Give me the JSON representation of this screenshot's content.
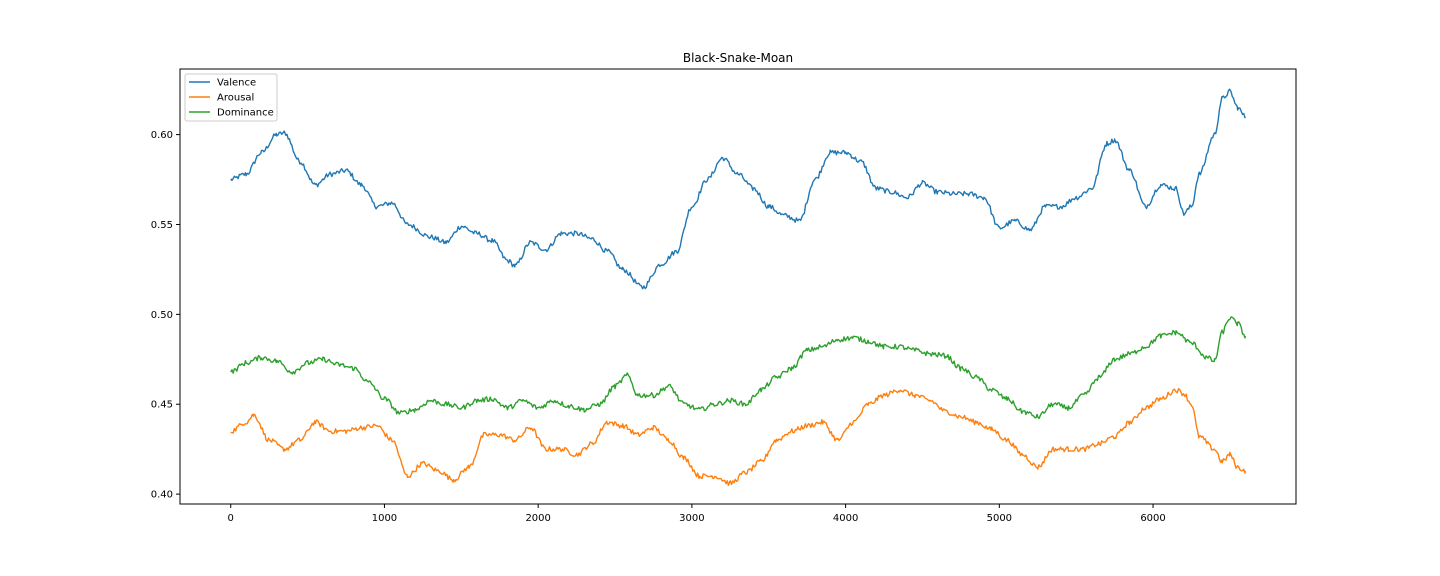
{
  "chart_data": {
    "type": "line",
    "title": "Black-Snake-Moan",
    "xlabel": "",
    "ylabel": "",
    "xlim": [
      -330,
      6930
    ],
    "ylim": [
      0.3945,
      0.6365
    ],
    "xticks": [
      0,
      1000,
      2000,
      3000,
      4000,
      5000,
      6000
    ],
    "yticks": [
      0.4,
      0.45,
      0.5,
      0.55,
      0.6
    ],
    "xtick_labels": [
      "0",
      "1000",
      "2000",
      "3000",
      "4000",
      "5000",
      "6000"
    ],
    "ytick_labels": [
      "0.40",
      "0.45",
      "0.50",
      "0.55",
      "0.60"
    ],
    "grid": false,
    "legend_position": "top-left",
    "series": [
      {
        "name": "Valence",
        "color": "#1f77b4",
        "points": [
          [
            0,
            0.575
          ],
          [
            100,
            0.578
          ],
          [
            200,
            0.59
          ],
          [
            300,
            0.6
          ],
          [
            350,
            0.601
          ],
          [
            450,
            0.585
          ],
          [
            550,
            0.572
          ],
          [
            650,
            0.578
          ],
          [
            750,
            0.58
          ],
          [
            850,
            0.572
          ],
          [
            950,
            0.56
          ],
          [
            1050,
            0.562
          ],
          [
            1150,
            0.55
          ],
          [
            1300,
            0.543
          ],
          [
            1400,
            0.54
          ],
          [
            1500,
            0.549
          ],
          [
            1600,
            0.545
          ],
          [
            1700,
            0.541
          ],
          [
            1800,
            0.53
          ],
          [
            1850,
            0.527
          ],
          [
            1950,
            0.54
          ],
          [
            2050,
            0.536
          ],
          [
            2150,
            0.545
          ],
          [
            2250,
            0.545
          ],
          [
            2350,
            0.542
          ],
          [
            2450,
            0.535
          ],
          [
            2550,
            0.525
          ],
          [
            2680,
            0.515
          ],
          [
            2800,
            0.528
          ],
          [
            2900,
            0.535
          ],
          [
            3000,
            0.56
          ],
          [
            3100,
            0.575
          ],
          [
            3200,
            0.587
          ],
          [
            3300,
            0.578
          ],
          [
            3400,
            0.57
          ],
          [
            3500,
            0.56
          ],
          [
            3600,
            0.555
          ],
          [
            3700,
            0.552
          ],
          [
            3800,
            0.575
          ],
          [
            3900,
            0.59
          ],
          [
            4000,
            0.59
          ],
          [
            4100,
            0.585
          ],
          [
            4200,
            0.57
          ],
          [
            4300,
            0.568
          ],
          [
            4400,
            0.565
          ],
          [
            4500,
            0.573
          ],
          [
            4600,
            0.568
          ],
          [
            4700,
            0.567
          ],
          [
            4800,
            0.567
          ],
          [
            4900,
            0.565
          ],
          [
            5000,
            0.548
          ],
          [
            5100,
            0.552
          ],
          [
            5200,
            0.547
          ],
          [
            5300,
            0.56
          ],
          [
            5400,
            0.56
          ],
          [
            5500,
            0.565
          ],
          [
            5600,
            0.57
          ],
          [
            5700,
            0.595
          ],
          [
            5750,
            0.597
          ],
          [
            5850,
            0.58
          ],
          [
            5950,
            0.56
          ],
          [
            6050,
            0.572
          ],
          [
            6150,
            0.57
          ],
          [
            6200,
            0.556
          ],
          [
            6250,
            0.56
          ],
          [
            6300,
            0.578
          ],
          [
            6400,
            0.6
          ],
          [
            6450,
            0.62
          ],
          [
            6500,
            0.624
          ],
          [
            6550,
            0.615
          ],
          [
            6600,
            0.61
          ]
        ]
      },
      {
        "name": "Arousal",
        "color": "#ff7f0e",
        "points": [
          [
            0,
            0.435
          ],
          [
            100,
            0.44
          ],
          [
            150,
            0.444
          ],
          [
            250,
            0.43
          ],
          [
            350,
            0.425
          ],
          [
            450,
            0.43
          ],
          [
            550,
            0.44
          ],
          [
            650,
            0.435
          ],
          [
            750,
            0.435
          ],
          [
            850,
            0.437
          ],
          [
            950,
            0.438
          ],
          [
            1050,
            0.43
          ],
          [
            1150,
            0.41
          ],
          [
            1250,
            0.417
          ],
          [
            1350,
            0.413
          ],
          [
            1450,
            0.408
          ],
          [
            1550,
            0.415
          ],
          [
            1650,
            0.433
          ],
          [
            1750,
            0.433
          ],
          [
            1850,
            0.43
          ],
          [
            1950,
            0.437
          ],
          [
            2050,
            0.425
          ],
          [
            2150,
            0.425
          ],
          [
            2250,
            0.422
          ],
          [
            2350,
            0.428
          ],
          [
            2450,
            0.44
          ],
          [
            2550,
            0.438
          ],
          [
            2650,
            0.433
          ],
          [
            2750,
            0.437
          ],
          [
            2850,
            0.43
          ],
          [
            2950,
            0.42
          ],
          [
            3050,
            0.41
          ],
          [
            3150,
            0.41
          ],
          [
            3250,
            0.406
          ],
          [
            3350,
            0.412
          ],
          [
            3450,
            0.418
          ],
          [
            3550,
            0.43
          ],
          [
            3650,
            0.435
          ],
          [
            3750,
            0.438
          ],
          [
            3850,
            0.44
          ],
          [
            3950,
            0.43
          ],
          [
            4050,
            0.44
          ],
          [
            4150,
            0.45
          ],
          [
            4250,
            0.455
          ],
          [
            4350,
            0.458
          ],
          [
            4450,
            0.455
          ],
          [
            4550,
            0.452
          ],
          [
            4650,
            0.446
          ],
          [
            4750,
            0.443
          ],
          [
            4850,
            0.44
          ],
          [
            4950,
            0.436
          ],
          [
            5050,
            0.43
          ],
          [
            5150,
            0.422
          ],
          [
            5250,
            0.415
          ],
          [
            5350,
            0.425
          ],
          [
            5450,
            0.425
          ],
          [
            5550,
            0.425
          ],
          [
            5650,
            0.428
          ],
          [
            5750,
            0.432
          ],
          [
            5850,
            0.44
          ],
          [
            5950,
            0.448
          ],
          [
            6050,
            0.453
          ],
          [
            6150,
            0.458
          ],
          [
            6200,
            0.456
          ],
          [
            6250,
            0.45
          ],
          [
            6300,
            0.432
          ],
          [
            6400,
            0.425
          ],
          [
            6450,
            0.418
          ],
          [
            6500,
            0.422
          ],
          [
            6550,
            0.415
          ],
          [
            6600,
            0.413
          ]
        ]
      },
      {
        "name": "Dominance",
        "color": "#2ca02c",
        "points": [
          [
            0,
            0.468
          ],
          [
            100,
            0.473
          ],
          [
            200,
            0.476
          ],
          [
            300,
            0.474
          ],
          [
            400,
            0.468
          ],
          [
            500,
            0.473
          ],
          [
            600,
            0.475
          ],
          [
            700,
            0.472
          ],
          [
            800,
            0.47
          ],
          [
            900,
            0.462
          ],
          [
            1000,
            0.453
          ],
          [
            1100,
            0.445
          ],
          [
            1200,
            0.447
          ],
          [
            1300,
            0.452
          ],
          [
            1400,
            0.45
          ],
          [
            1500,
            0.448
          ],
          [
            1600,
            0.452
          ],
          [
            1700,
            0.453
          ],
          [
            1800,
            0.448
          ],
          [
            1900,
            0.452
          ],
          [
            2000,
            0.448
          ],
          [
            2100,
            0.452
          ],
          [
            2200,
            0.449
          ],
          [
            2300,
            0.447
          ],
          [
            2400,
            0.45
          ],
          [
            2500,
            0.46
          ],
          [
            2580,
            0.466
          ],
          [
            2650,
            0.455
          ],
          [
            2750,
            0.455
          ],
          [
            2850,
            0.46
          ],
          [
            2950,
            0.45
          ],
          [
            3050,
            0.447
          ],
          [
            3150,
            0.45
          ],
          [
            3250,
            0.452
          ],
          [
            3350,
            0.45
          ],
          [
            3450,
            0.458
          ],
          [
            3550,
            0.465
          ],
          [
            3650,
            0.47
          ],
          [
            3750,
            0.48
          ],
          [
            3850,
            0.482
          ],
          [
            3950,
            0.486
          ],
          [
            4050,
            0.487
          ],
          [
            4150,
            0.485
          ],
          [
            4250,
            0.482
          ],
          [
            4350,
            0.482
          ],
          [
            4450,
            0.48
          ],
          [
            4550,
            0.478
          ],
          [
            4650,
            0.477
          ],
          [
            4750,
            0.47
          ],
          [
            4850,
            0.465
          ],
          [
            4950,
            0.458
          ],
          [
            5050,
            0.453
          ],
          [
            5150,
            0.446
          ],
          [
            5250,
            0.443
          ],
          [
            5350,
            0.45
          ],
          [
            5450,
            0.448
          ],
          [
            5550,
            0.455
          ],
          [
            5650,
            0.465
          ],
          [
            5750,
            0.475
          ],
          [
            5850,
            0.478
          ],
          [
            5950,
            0.482
          ],
          [
            6050,
            0.488
          ],
          [
            6150,
            0.49
          ],
          [
            6250,
            0.484
          ],
          [
            6350,
            0.476
          ],
          [
            6400,
            0.474
          ],
          [
            6450,
            0.49
          ],
          [
            6500,
            0.498
          ],
          [
            6550,
            0.495
          ],
          [
            6600,
            0.488
          ]
        ]
      }
    ]
  }
}
